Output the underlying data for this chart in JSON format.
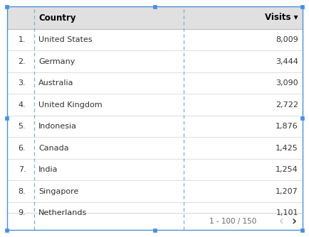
{
  "columns": [
    "",
    "Country",
    "Visits ▾"
  ],
  "rows": [
    [
      "1.",
      "United States",
      "8,009"
    ],
    [
      "2.",
      "Germany",
      "3,444"
    ],
    [
      "3.",
      "Australia",
      "3,090"
    ],
    [
      "4.",
      "United Kingdom",
      "2,722"
    ],
    [
      "5.",
      "Indonesia",
      "1,876"
    ],
    [
      "6.",
      "Canada",
      "1,425"
    ],
    [
      "7.",
      "India",
      "1,254"
    ],
    [
      "8.",
      "Singapore",
      "1,207"
    ],
    [
      "9.",
      "Netherlands",
      "1,101"
    ]
  ],
  "pagination": "1 - 100 / 150",
  "header_bg": "#e0e0e0",
  "border_color": "#aaaaaa",
  "dashed_line_color": "#7bafd4",
  "selection_color": "#4a90d9",
  "text_color": "#333333",
  "header_text_color": "#000000",
  "pagination_text_color": "#666666",
  "figsize": [
    4.35,
    3.34
  ],
  "dpi": 100
}
